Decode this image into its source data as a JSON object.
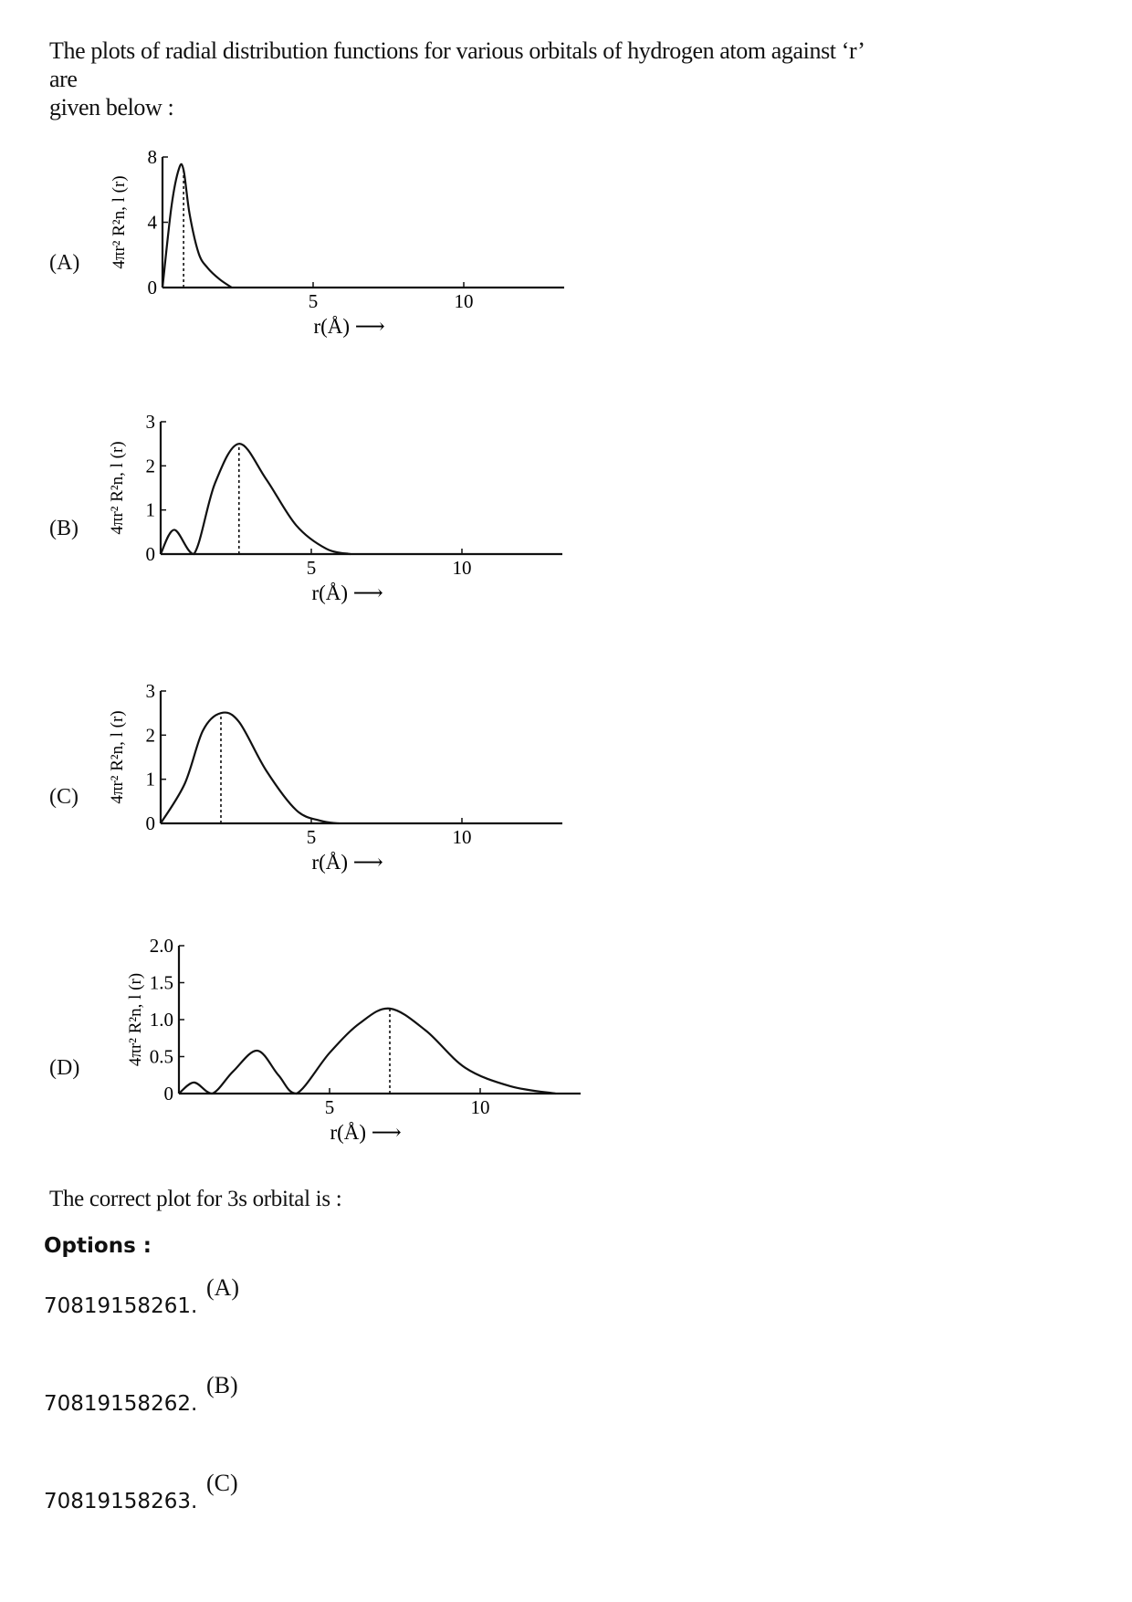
{
  "question": {
    "intro_line1": "The plots of radial distribution functions for various orbitals of hydrogen atom against ‘r’ are",
    "intro_line2": "given below :",
    "prompt": "The correct plot for 3s orbital is :"
  },
  "plots": [
    {
      "label": "(A)",
      "ylabel": "4πr² R²n, l (r)",
      "xlabel": "r(Å) ⟶",
      "y_ticks": [
        "8",
        "4",
        "0"
      ],
      "x_ticks": [
        "5",
        "10"
      ]
    },
    {
      "label": "(B)",
      "ylabel": "4πr² R²n, l (r)",
      "xlabel": "r(Å) ⟶",
      "y_ticks": [
        "3",
        "2",
        "1",
        "0"
      ],
      "x_ticks": [
        "5",
        "10"
      ]
    },
    {
      "label": "(C)",
      "ylabel": "4πr² R²n, l (r)",
      "xlabel": "r(Å) ⟶",
      "y_ticks": [
        "3",
        "2",
        "1",
        "0"
      ],
      "x_ticks": [
        "5",
        "10"
      ]
    },
    {
      "label": "(D)",
      "ylabel": "4πr² R²n, l (r)",
      "xlabel": "r(Å) ⟶",
      "y_ticks": [
        "2.0",
        "1.5",
        "1.0",
        "0.5",
        "0"
      ],
      "x_ticks": [
        "5",
        "10"
      ]
    }
  ],
  "chart_data": [
    {
      "type": "line",
      "title": "(A)",
      "xlabel": "r(Å)",
      "ylabel": "4πr² R²n,l(r)",
      "xlim": [
        0,
        13
      ],
      "ylim": [
        0,
        8
      ],
      "x": [
        0,
        0.3,
        0.55,
        0.7,
        0.9,
        1.2,
        1.5,
        1.9,
        2.3
      ],
      "values": [
        0,
        5.0,
        7.3,
        7.2,
        4.5,
        2.1,
        1.2,
        0.5,
        0
      ],
      "peak_marker_x": 0.7
    },
    {
      "type": "line",
      "title": "(B)",
      "xlabel": "r(Å)",
      "ylabel": "4πr² R²n,l(r)",
      "xlim": [
        0,
        13
      ],
      "ylim": [
        0,
        3
      ],
      "x": [
        0,
        0.45,
        1.1,
        1.8,
        2.6,
        3.5,
        4.5,
        5.5,
        6.3
      ],
      "values": [
        0,
        0.55,
        0,
        1.6,
        2.5,
        1.7,
        0.65,
        0.12,
        0
      ],
      "peak_marker_x": 2.6
    },
    {
      "type": "line",
      "title": "(C)",
      "xlabel": "r(Å)",
      "ylabel": "4πr² R²n,l(r)",
      "xlim": [
        0,
        13
      ],
      "ylim": [
        0,
        3
      ],
      "x": [
        0,
        0.8,
        1.4,
        2.0,
        2.6,
        3.5,
        4.5,
        5.3,
        5.9
      ],
      "values": [
        0,
        0.9,
        2.1,
        2.5,
        2.3,
        1.2,
        0.3,
        0.06,
        0
      ],
      "peak_marker_x": 2.0
    },
    {
      "type": "line",
      "title": "(D)",
      "xlabel": "r(Å)",
      "ylabel": "4πr² R²n,l(r)",
      "xlim": [
        0,
        13
      ],
      "ylim": [
        0,
        2.0
      ],
      "x": [
        0,
        0.5,
        1.1,
        1.8,
        2.6,
        3.3,
        3.9,
        5.0,
        6.0,
        7.0,
        8.2,
        9.5,
        11.0,
        12.5
      ],
      "values": [
        0,
        0.15,
        0,
        0.3,
        0.58,
        0.25,
        0,
        0.55,
        0.95,
        1.15,
        0.85,
        0.35,
        0.1,
        0
      ],
      "peak_marker_x": 7.0
    }
  ],
  "options": {
    "heading": "Options :",
    "items": [
      {
        "number": "70819158261.",
        "value": "(A)"
      },
      {
        "number": "70819158262.",
        "value": "(B)"
      },
      {
        "number": "70819158263.",
        "value": "(C)"
      }
    ]
  }
}
